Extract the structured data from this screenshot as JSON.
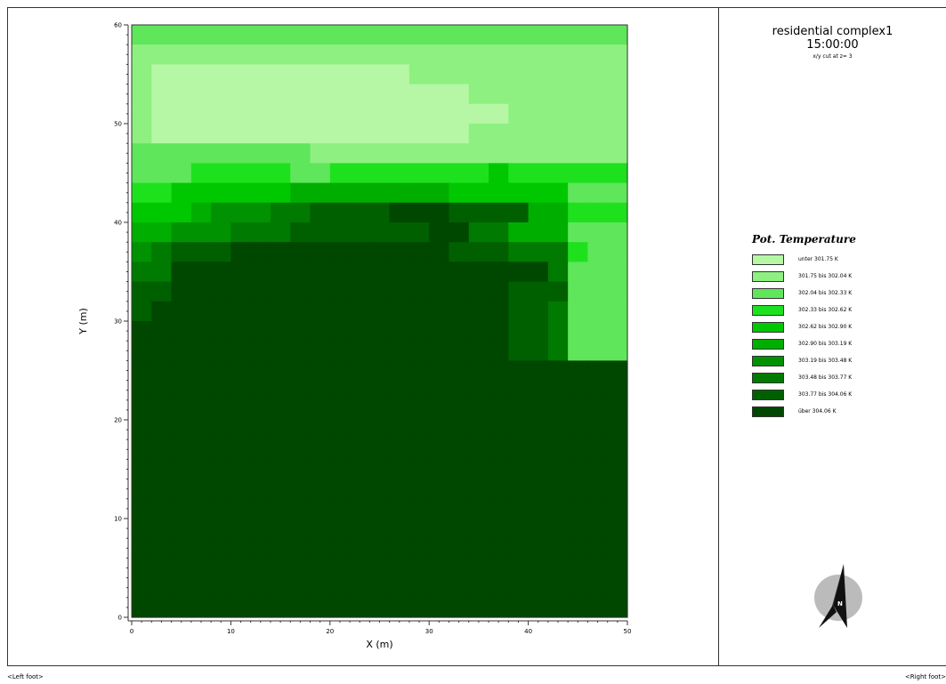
{
  "title": {
    "main": "residential complex1",
    "time": "15:00:00",
    "subtitle": "x/y cut at z= 3"
  },
  "legend": {
    "title": "Pot. Temperature",
    "items": [
      {
        "label": "unter 301.75 K",
        "color": "#b5f7a5"
      },
      {
        "label": "301.75 bis 302.04 K",
        "color": "#8ef080"
      },
      {
        "label": "302.04 bis 302.33 K",
        "color": "#5fe65b"
      },
      {
        "label": "302.33 bis 302.62 K",
        "color": "#1ee11e"
      },
      {
        "label": "302.62 bis 302.90 K",
        "color": "#00c800"
      },
      {
        "label": "302.90 bis 303.19 K",
        "color": "#00ae00"
      },
      {
        "label": "303.19 bis 303.48 K",
        "color": "#009200"
      },
      {
        "label": "303.48 bis 303.77 K",
        "color": "#007a00"
      },
      {
        "label": "303.77 bis 304.06 K",
        "color": "#006000"
      },
      {
        "label": "über 304.06 K",
        "color": "#004700"
      }
    ]
  },
  "footer": {
    "left": "<Left foot>",
    "right": "<Right foot>"
  },
  "north_label": "N",
  "chart_data": {
    "type": "heatmap",
    "xlabel": "X (m)",
    "ylabel": "Y (m)",
    "xlim": [
      0,
      50
    ],
    "ylim": [
      0,
      60
    ],
    "x_ticks": [
      0,
      10,
      20,
      30,
      40,
      50
    ],
    "y_ticks": [
      0,
      10,
      20,
      30,
      40,
      50,
      60
    ],
    "grid": false,
    "cell_size_m": 2,
    "columns": 25,
    "rows": 30,
    "value_classes": [
      "unter 301.75 K",
      "301.75 bis 302.04 K",
      "302.04 bis 302.33 K",
      "302.33 bis 302.62 K",
      "302.62 bis 302.90 K",
      "302.90 bis 303.19 K",
      "303.19 bis 303.48 K",
      "303.48 bis 303.77 K",
      "303.77 bis 304.06 K",
      "über 304.06 K"
    ],
    "grid_rows_top_to_bottom": [
      "2222222222222222222222222",
      "1111111111111111111111111",
      "1000000000000011111111111",
      "1000000000000000011111111",
      "1000000000000000000111111",
      "1000000000000000011111111",
      "2222222221111111111111111",
      "2223333322333333334333333",
      "3344444455555555444444222",
      "4445666778888999888855333",
      "5566677788888889977555222",
      "6788899999999999888777322",
      "7799999999999999999997222",
      "8899999999999999999888222",
      "8999999999999999999887222",
      "9999999999999999999887222",
      "9999999999999999999887222",
      "9999999999999999999999999",
      "9999999999999999999999999",
      "9999999999999999999999999",
      "9999999999999999999999999",
      "9999999999999999999999999",
      "9999999999999999999999999",
      "9999999999999999999999999",
      "9999999999999999999999999",
      "9999999999999999999999999",
      "9999999999999999999999999",
      "9999999999999999999999999",
      "9999999999999999999999999",
      "9999999999999999999999999"
    ]
  }
}
